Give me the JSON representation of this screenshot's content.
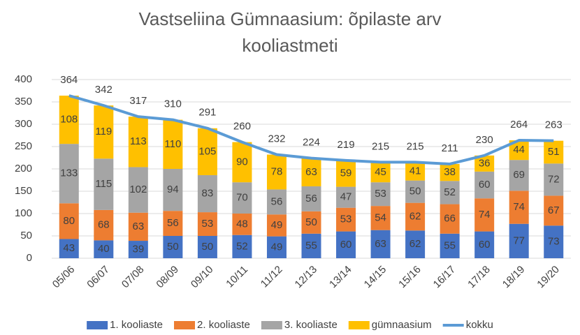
{
  "chart_data": {
    "type": "stacked_bar_line",
    "title": "Vastseliina Gümnaasium: õpilaste arv kooliastmeti",
    "categories": [
      "05/06",
      "06/07",
      "07/08",
      "08/09",
      "09/10",
      "10/11",
      "11/12",
      "12/13",
      "13/14",
      "14/15",
      "15/16",
      "16/17",
      "17/18",
      "18/19",
      "19/20"
    ],
    "series": [
      {
        "name": "1. kooliaste",
        "color": "#4472c4",
        "values": [
          43,
          40,
          39,
          50,
          50,
          52,
          49,
          55,
          60,
          63,
          62,
          55,
          60,
          77,
          73
        ]
      },
      {
        "name": "2. kooliaste",
        "color": "#ed7d31",
        "values": [
          80,
          68,
          63,
          56,
          53,
          48,
          49,
          50,
          53,
          54,
          62,
          66,
          74,
          74,
          67
        ]
      },
      {
        "name": "3. kooliaste",
        "color": "#a5a5a5",
        "values": [
          133,
          115,
          102,
          94,
          83,
          70,
          56,
          56,
          47,
          53,
          50,
          52,
          60,
          69,
          72
        ]
      },
      {
        "name": "gümnaasium",
        "color": "#ffc000",
        "values": [
          108,
          119,
          113,
          110,
          105,
          90,
          78,
          63,
          59,
          45,
          41,
          38,
          36,
          44,
          51
        ]
      },
      {
        "name": "kokku",
        "color": "#5b9bd5",
        "type": "line",
        "values": [
          364,
          342,
          317,
          310,
          291,
          260,
          232,
          224,
          219,
          215,
          215,
          211,
          230,
          264,
          263
        ]
      }
    ],
    "ylim": [
      0,
      400
    ],
    "yticks": [
      0,
      50,
      100,
      150,
      200,
      250,
      300,
      350,
      400
    ],
    "grid": true,
    "legend": "bottom"
  }
}
